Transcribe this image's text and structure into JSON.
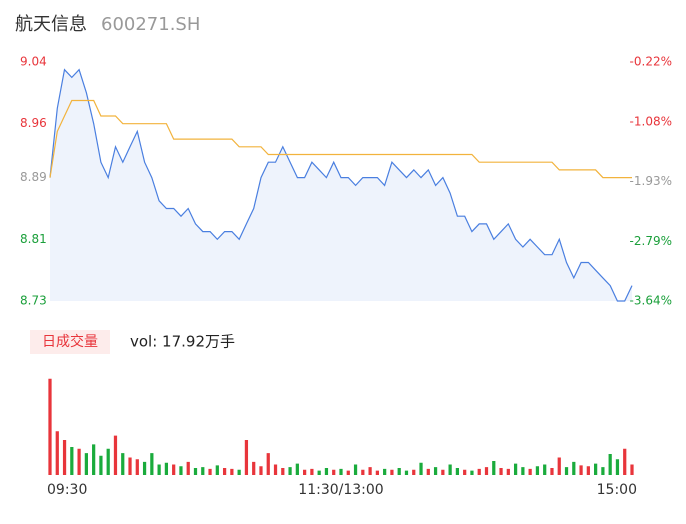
{
  "header": {
    "title": "航天信息",
    "code": "600271.SH"
  },
  "chart_data": [
    {
      "type": "line",
      "x": [
        0,
        3,
        6,
        9,
        12,
        15,
        18,
        21,
        24,
        27,
        30,
        33,
        36,
        39,
        42,
        45,
        48,
        51,
        54,
        57,
        60,
        63,
        66,
        69,
        72,
        75,
        78,
        81,
        84,
        87,
        90,
        93,
        96,
        99,
        102,
        105,
        108,
        111,
        114,
        117,
        120,
        123,
        126,
        129,
        132,
        135,
        138,
        141,
        144,
        147,
        150,
        153,
        156,
        159,
        162,
        165,
        168,
        171,
        174,
        177,
        180,
        183,
        186,
        189,
        192,
        195,
        198,
        201,
        204,
        207,
        210,
        213,
        216,
        219,
        222,
        225,
        228,
        231,
        234,
        237,
        240
      ],
      "xlim": [
        0,
        240
      ],
      "xticks": [
        {
          "value": 0,
          "label": "09:30"
        },
        {
          "value": 120,
          "label": "11:30/13:00"
        },
        {
          "value": 240,
          "label": "15:00"
        }
      ],
      "ylim": [
        8.73,
        9.04
      ],
      "yticks": [
        9.04,
        8.96,
        8.89,
        8.81,
        8.73
      ],
      "ytick_colors": [
        "#e8353b",
        "#e8353b",
        "#999999",
        "#1a9f3a",
        "#1a9f3a"
      ],
      "y2lim": [
        -3.64,
        -0.22
      ],
      "y2ticks": [
        {
          "value": -0.22,
          "label": "-0.22%"
        },
        {
          "value": -1.08,
          "label": "-1.08%"
        },
        {
          "value": -1.93,
          "label": "-1.93%"
        },
        {
          "value": -2.79,
          "label": "-2.79%"
        },
        {
          "value": -3.64,
          "label": "-3.64%"
        }
      ],
      "y2tick_colors": [
        "#e8353b",
        "#e8353b",
        "#999999",
        "#1a9f3a",
        "#1a9f3a"
      ],
      "series": [
        {
          "color": "#4a7fe0",
          "fill": "#eef3fc",
          "values": [
            8.89,
            8.98,
            9.03,
            9.02,
            9.03,
            9.0,
            8.96,
            8.91,
            8.89,
            8.93,
            8.91,
            8.93,
            8.95,
            8.91,
            8.89,
            8.86,
            8.85,
            8.85,
            8.84,
            8.85,
            8.83,
            8.82,
            8.82,
            8.81,
            8.82,
            8.82,
            8.81,
            8.83,
            8.85,
            8.89,
            8.91,
            8.91,
            8.93,
            8.91,
            8.89,
            8.89,
            8.91,
            8.9,
            8.89,
            8.91,
            8.89,
            8.89,
            8.88,
            8.89,
            8.89,
            8.89,
            8.88,
            8.91,
            8.9,
            8.89,
            8.9,
            8.89,
            8.9,
            8.88,
            8.89,
            8.87,
            8.84,
            8.84,
            8.82,
            8.83,
            8.83,
            8.81,
            8.82,
            8.83,
            8.81,
            8.8,
            8.81,
            8.8,
            8.79,
            8.79,
            8.81,
            8.78,
            8.76,
            8.78,
            8.78,
            8.77,
            8.76,
            8.75,
            8.73,
            8.73,
            8.75
          ]
        },
        {
          "color": "#f2b33d",
          "values": [
            8.89,
            8.95,
            8.97,
            8.99,
            8.99,
            8.99,
            8.99,
            8.97,
            8.97,
            8.97,
            8.96,
            8.96,
            8.96,
            8.96,
            8.96,
            8.96,
            8.96,
            8.94,
            8.94,
            8.94,
            8.94,
            8.94,
            8.94,
            8.94,
            8.94,
            8.94,
            8.93,
            8.93,
            8.93,
            8.93,
            8.92,
            8.92,
            8.92,
            8.92,
            8.92,
            8.92,
            8.92,
            8.92,
            8.92,
            8.92,
            8.92,
            8.92,
            8.92,
            8.92,
            8.92,
            8.92,
            8.92,
            8.92,
            8.92,
            8.92,
            8.92,
            8.92,
            8.92,
            8.92,
            8.92,
            8.92,
            8.92,
            8.92,
            8.92,
            8.91,
            8.91,
            8.91,
            8.91,
            8.91,
            8.91,
            8.91,
            8.91,
            8.91,
            8.91,
            8.91,
            8.9,
            8.9,
            8.9,
            8.9,
            8.9,
            8.9,
            8.89,
            8.89,
            8.89,
            8.89,
            8.89
          ]
        }
      ]
    },
    {
      "type": "bar",
      "label": "日成交量",
      "total_label": "vol: 17.92万手",
      "x": [
        0,
        3,
        6,
        9,
        12,
        15,
        18,
        21,
        24,
        27,
        30,
        33,
        36,
        39,
        42,
        45,
        48,
        51,
        54,
        57,
        60,
        63,
        66,
        69,
        72,
        75,
        78,
        81,
        84,
        87,
        90,
        93,
        96,
        99,
        102,
        105,
        108,
        111,
        114,
        117,
        120,
        123,
        126,
        129,
        132,
        135,
        138,
        141,
        144,
        147,
        150,
        153,
        156,
        159,
        162,
        165,
        168,
        171,
        174,
        177,
        180,
        183,
        186,
        189,
        192,
        195,
        198,
        201,
        204,
        207,
        210,
        213,
        216,
        219,
        222,
        225,
        228,
        231,
        234,
        237,
        240
      ],
      "xlim": [
        0,
        240
      ],
      "ylim": [
        0,
        12000
      ],
      "up_color": "#e8353b",
      "down_color": "#1aab3c",
      "values": [
        11000,
        5000,
        4000,
        3200,
        3000,
        2500,
        3500,
        2200,
        3000,
        4500,
        2500,
        2000,
        1800,
        1500,
        2500,
        1200,
        1400,
        1200,
        1000,
        1500,
        800,
        900,
        700,
        1100,
        800,
        700,
        600,
        4000,
        1500,
        1000,
        2500,
        1200,
        800,
        900,
        1300,
        600,
        700,
        500,
        800,
        600,
        700,
        500,
        1200,
        600,
        900,
        500,
        700,
        600,
        800,
        500,
        600,
        1400,
        700,
        900,
        600,
        1200,
        800,
        600,
        500,
        700,
        900,
        1600,
        800,
        700,
        1300,
        900,
        700,
        1000,
        1200,
        800,
        2000,
        900,
        1500,
        1100,
        1000,
        1300,
        900,
        2400,
        1800,
        3000,
        1200
      ]
    }
  ]
}
